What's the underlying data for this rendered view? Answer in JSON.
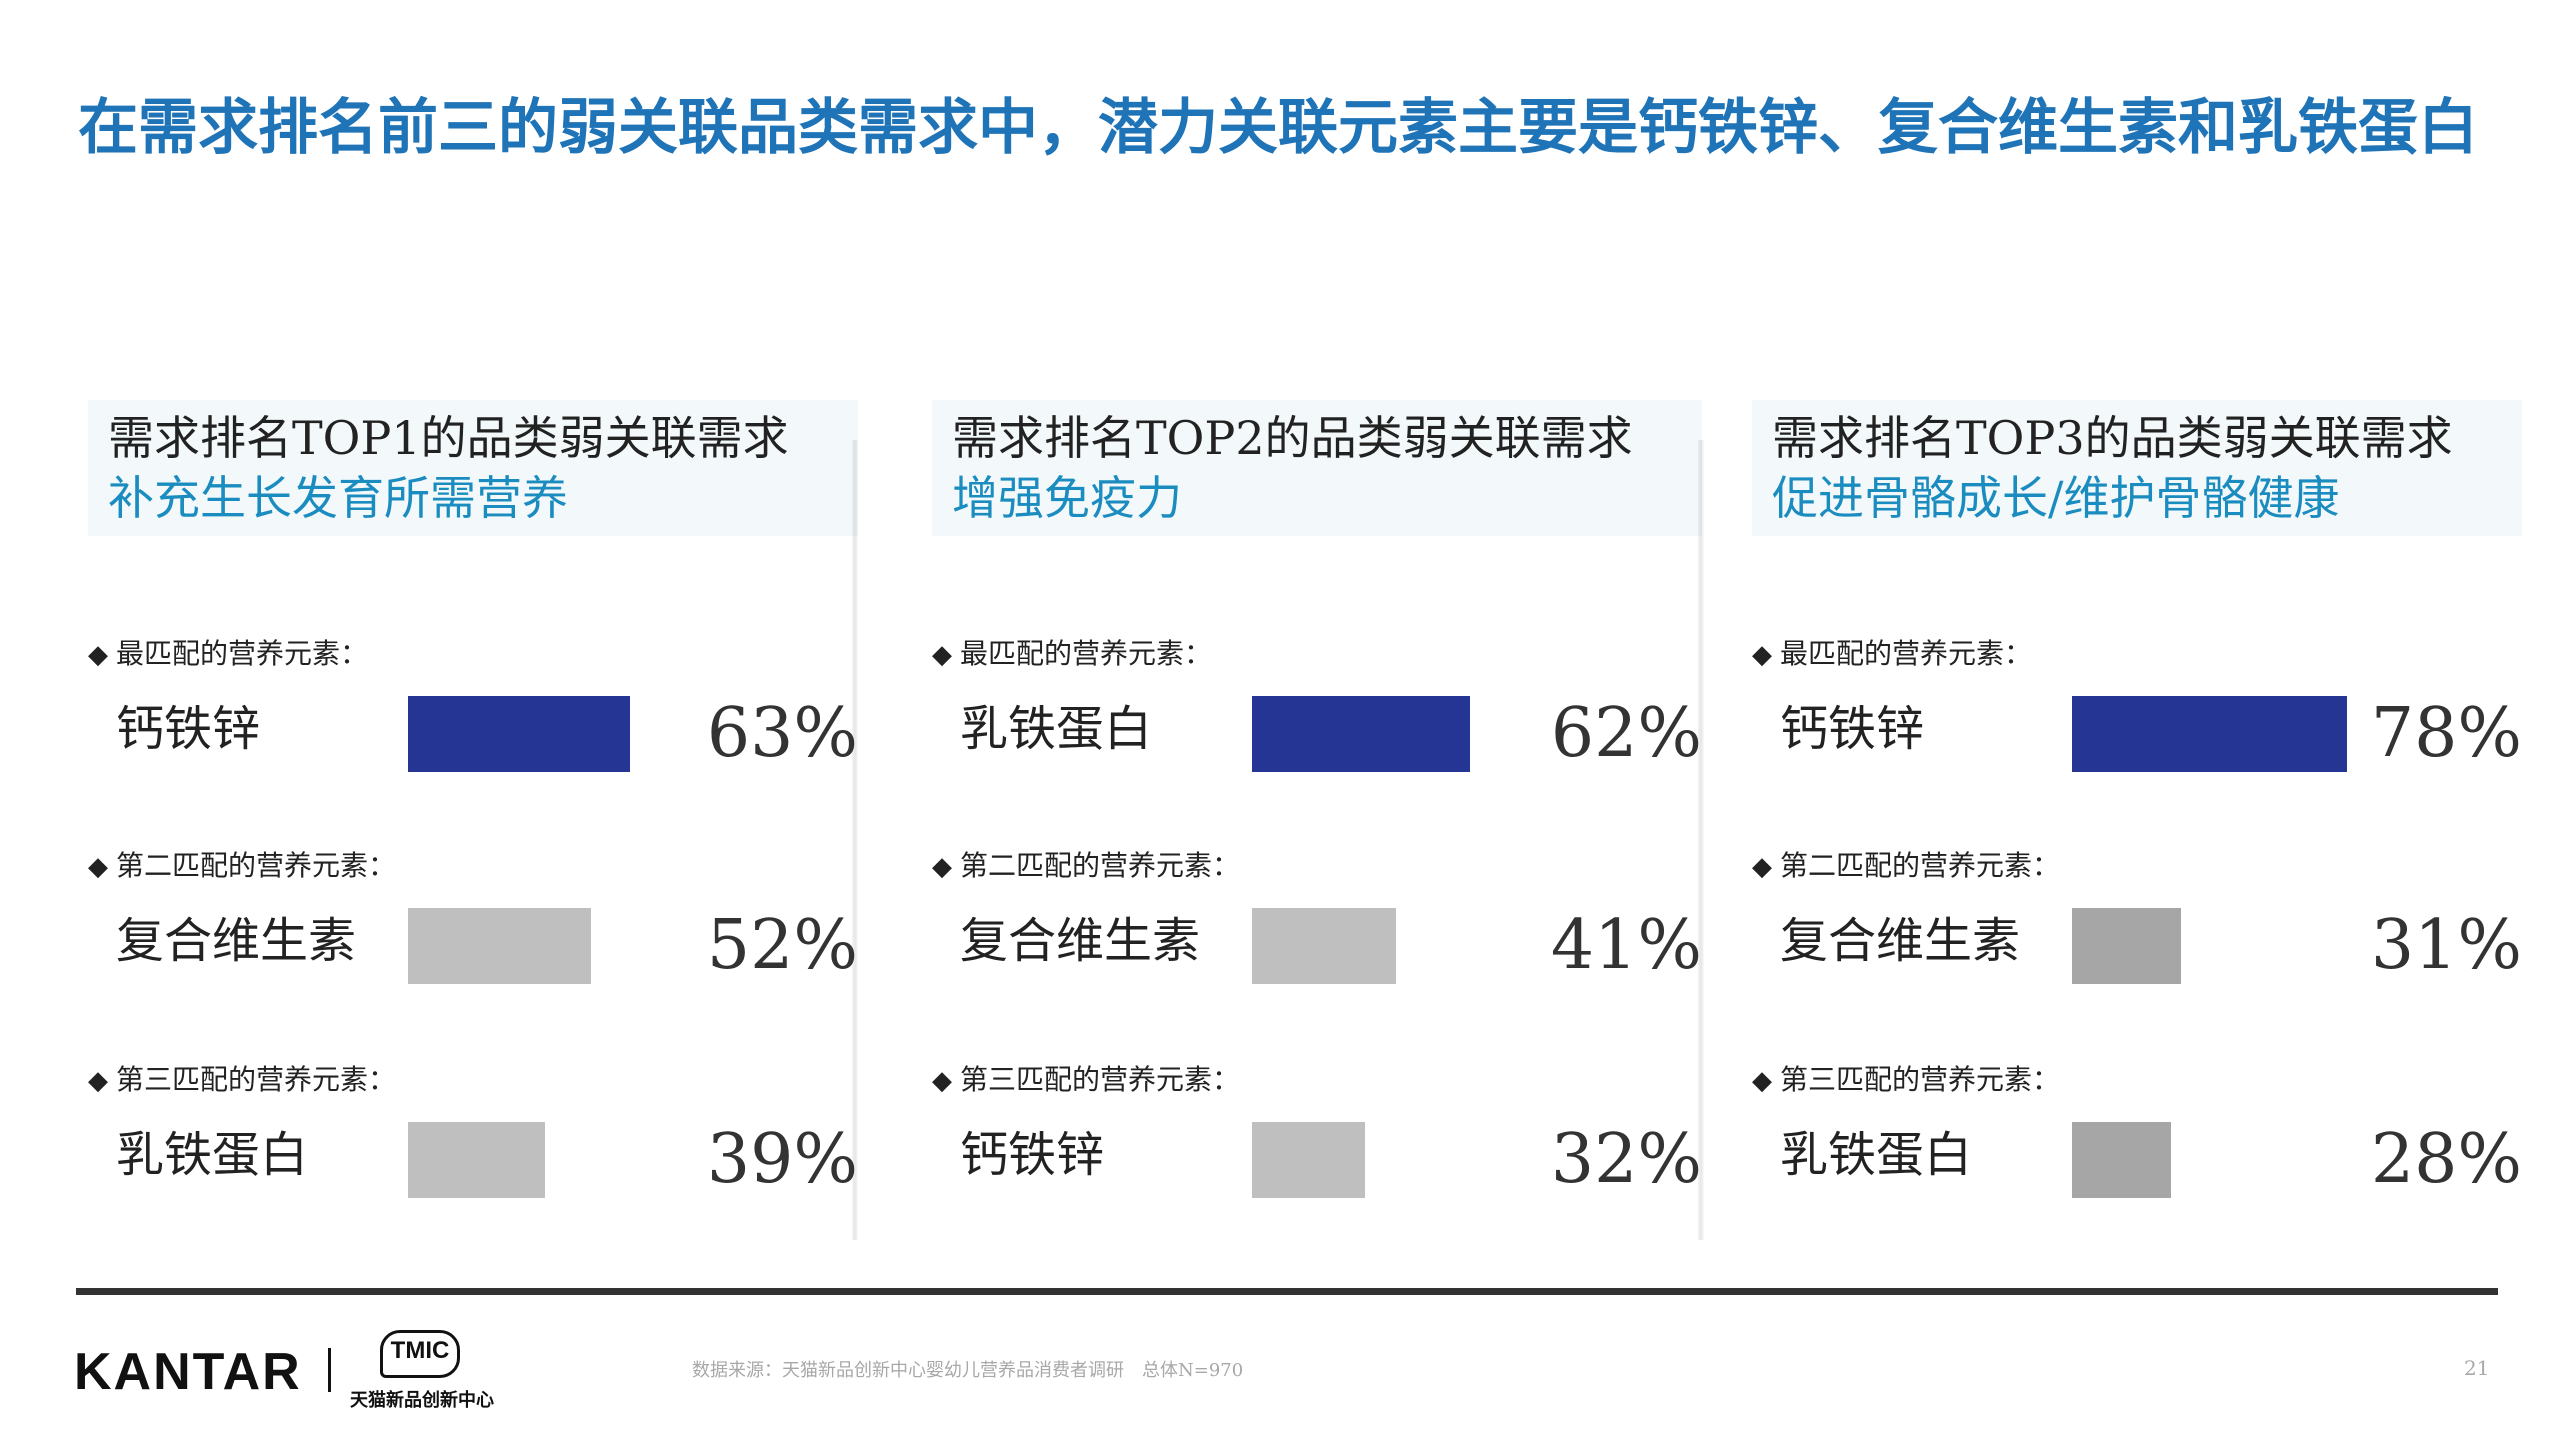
{
  "title": "在需求排名前三的弱关联品类需求中，潜力关联元素主要是钙铁锌、复合维生素和乳铁蛋白",
  "chart_data": [
    {
      "type": "bar",
      "title": "需求排名TOP1的品类弱关联需求",
      "subtitle": "补充生长发育所需营养",
      "rows": [
        {
          "rank_label": "最匹配的营养元素：",
          "name": "钙铁锌",
          "value": 63,
          "value_text": "63%",
          "color": "#243593"
        },
        {
          "rank_label": "第二匹配的营养元素：",
          "name": "复合维生素",
          "value": 52,
          "value_text": "52%",
          "color": "#bfbfbf"
        },
        {
          "rank_label": "第三匹配的营养元素：",
          "name": "乳铁蛋白",
          "value": 39,
          "value_text": "39%",
          "color": "#bfbfbf"
        }
      ]
    },
    {
      "type": "bar",
      "title": "需求排名TOP2的品类弱关联需求",
      "subtitle": "增强免疫力",
      "rows": [
        {
          "rank_label": "最匹配的营养元素：",
          "name": "乳铁蛋白",
          "value": 62,
          "value_text": "62%",
          "color": "#243593"
        },
        {
          "rank_label": "第二匹配的营养元素：",
          "name": "复合维生素",
          "value": 41,
          "value_text": "41%",
          "color": "#bfbfbf"
        },
        {
          "rank_label": "第三匹配的营养元素：",
          "name": "钙铁锌",
          "value": 32,
          "value_text": "32%",
          "color": "#bfbfbf"
        }
      ]
    },
    {
      "type": "bar",
      "title": "需求排名TOP3的品类弱关联需求",
      "subtitle": "促进骨骼成长/维护骨骼健康",
      "rows": [
        {
          "rank_label": "最匹配的营养元素：",
          "name": "钙铁锌",
          "value": 78,
          "value_text": "78%",
          "color": "#243593"
        },
        {
          "rank_label": "第二匹配的营养元素：",
          "name": "复合维生素",
          "value": 31,
          "value_text": "31%",
          "color": "#a6a6a6"
        },
        {
          "rank_label": "第三匹配的营养元素：",
          "name": "乳铁蛋白",
          "value": 28,
          "value_text": "28%",
          "color": "#a6a6a6"
        }
      ]
    }
  ],
  "footer": {
    "brand": "KANTAR",
    "partner_logo_text": "TMIC",
    "partner_name": "天猫新品创新中心",
    "source": "数据来源：天猫新品创新中心婴幼儿营养品消费者调研　总体N=970",
    "page_number": "21"
  }
}
